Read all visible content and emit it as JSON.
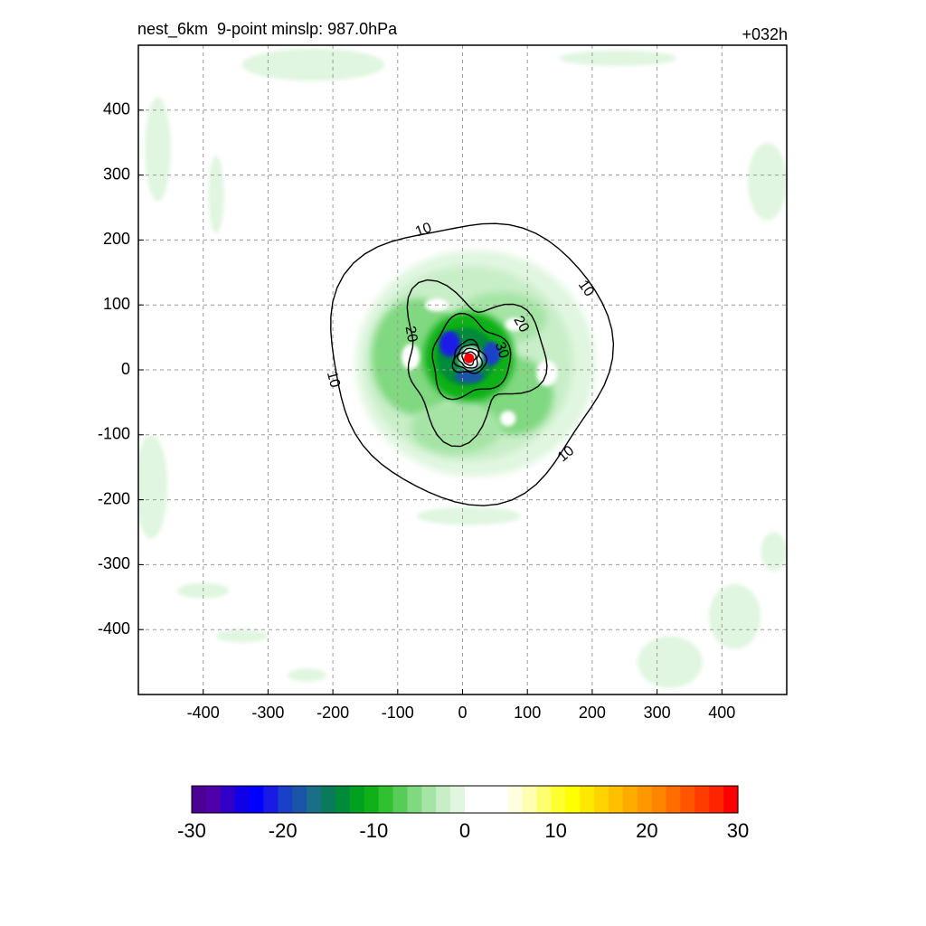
{
  "figure": {
    "title_left": "nest_6km  9-point minslp: 987.0hPa",
    "title_right": "+032h"
  },
  "chart_data": [
    {
      "type": "heatmap",
      "title": "nest_6km  9-point minslp: 987.0hPa",
      "valid_time_label": "+032h",
      "xlim": [
        -500,
        500
      ],
      "ylim": [
        -500,
        500
      ],
      "x_ticks": [
        -400,
        -300,
        -200,
        -100,
        0,
        100,
        200,
        300,
        400
      ],
      "y_ticks": [
        -400,
        -300,
        -200,
        -100,
        0,
        100,
        200,
        300,
        400
      ],
      "grid": true,
      "grid_style": "dashed",
      "shading": "green shades for negative values near a circular storm; dark blue/navy close to the center",
      "contours": {
        "color": "#000000",
        "labels": [
          "10",
          "10",
          "10",
          "10",
          "20",
          "20",
          "30"
        ],
        "levels": [
          10,
          20,
          30,
          40,
          50,
          60,
          70,
          80
        ],
        "approx_radius_km": [
          215,
          105,
          60,
          25,
          20,
          15,
          10,
          6
        ]
      },
      "center_marker": {
        "x": 10,
        "y": 18,
        "color": "#ff0000"
      }
    },
    {
      "type": "colorbar",
      "ticks": [
        -30,
        -20,
        -10,
        0,
        10,
        20,
        30
      ],
      "range": [
        -30,
        30
      ],
      "colors": [
        "#4b0096",
        "#5000a8",
        "#3000c8",
        "#1000e8",
        "#0000ff",
        "#1a1ae6",
        "#1a40c8",
        "#1a55a8",
        "#1a6e88",
        "#0a7a5a",
        "#008a3a",
        "#00a020",
        "#10b018",
        "#30c030",
        "#58cc58",
        "#80d880",
        "#a6e4a6",
        "#c8eec8",
        "#e0f6e0",
        "#ffffff",
        "#ffffff",
        "#ffffff",
        "#ffffe0",
        "#ffffb0",
        "#ffff70",
        "#ffff30",
        "#ffff00",
        "#ffe800",
        "#ffd400",
        "#ffc000",
        "#ffac00",
        "#ff9800",
        "#ff8400",
        "#ff6c00",
        "#ff5400",
        "#ff3c00",
        "#ff2400",
        "#ff0000"
      ]
    }
  ]
}
